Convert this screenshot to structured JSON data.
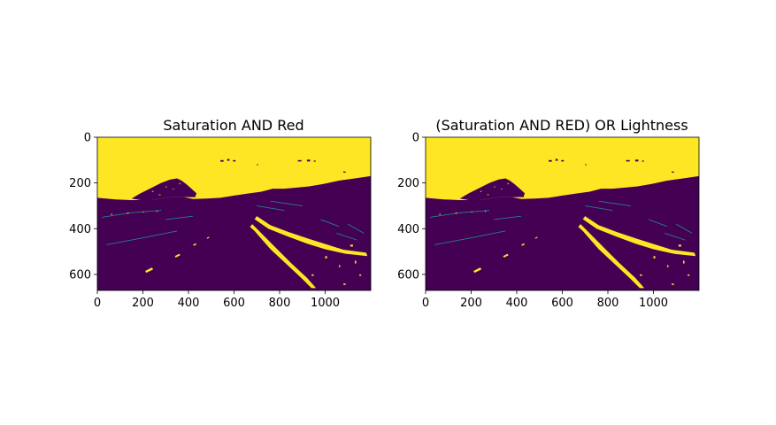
{
  "chart_data": [
    {
      "type": "heatmap",
      "title": "Saturation AND Red",
      "xlabel": "",
      "ylabel": "",
      "x_ticks": [
        0,
        200,
        400,
        600,
        800,
        1000
      ],
      "y_ticks": [
        0,
        200,
        400,
        600
      ],
      "xlim": [
        0,
        1200
      ],
      "ylim": [
        670,
        0
      ],
      "colormap": [
        "#440154",
        "#fde725"
      ],
      "legend": "none",
      "grid": false
    },
    {
      "type": "heatmap",
      "title": "(Saturation AND RED) OR Lightness",
      "xlabel": "",
      "ylabel": "",
      "x_ticks": [
        0,
        200,
        400,
        600,
        800,
        1000
      ],
      "y_ticks": [
        0,
        200,
        400,
        600
      ],
      "xlim": [
        0,
        1200
      ],
      "ylim": [
        670,
        0
      ],
      "colormap": [
        "#440154",
        "#fde725"
      ],
      "legend": "none",
      "grid": false
    }
  ]
}
